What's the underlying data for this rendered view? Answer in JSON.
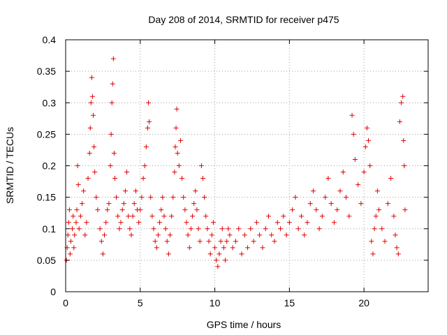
{
  "chart_data": {
    "type": "scatter",
    "title": "Day 208 of 2014, SRMTID for receiver p475",
    "xlabel": "GPS time / hours",
    "ylabel": "SRMTID / TECUs",
    "xlim": [
      0,
      24.3
    ],
    "ylim": [
      0,
      0.4
    ],
    "x_ticks": [
      0,
      5,
      10,
      15,
      20
    ],
    "x_tick_labels": [
      "0",
      "5",
      "10",
      "15",
      "20"
    ],
    "y_ticks": [
      0,
      0.05,
      0.1,
      0.15,
      0.2,
      0.25,
      0.3,
      0.35,
      0.4
    ],
    "y_tick_labels": [
      "0",
      "0.05",
      "0.1",
      "0.15",
      "0.2",
      "0.25",
      "0.3",
      "0.35",
      "0.4"
    ],
    "grid": true,
    "marker": "+",
    "color": "#e00000",
    "series": [
      {
        "name": "SRMTID",
        "points": [
          [
            0.05,
            0.05
          ],
          [
            0.1,
            0.07
          ],
          [
            0.15,
            0.09
          ],
          [
            0.2,
            0.11
          ],
          [
            0.25,
            0.13
          ],
          [
            0.3,
            0.06
          ],
          [
            0.35,
            0.08
          ],
          [
            0.45,
            0.1
          ],
          [
            0.5,
            0.12
          ],
          [
            0.55,
            0.07
          ],
          [
            0.6,
            0.09
          ],
          [
            0.7,
            0.11
          ],
          [
            0.75,
            0.13
          ],
          [
            0.8,
            0.2
          ],
          [
            0.85,
            0.17
          ],
          [
            0.9,
            0.1
          ],
          [
            1.0,
            0.12
          ],
          [
            1.1,
            0.14
          ],
          [
            1.2,
            0.16
          ],
          [
            1.3,
            0.09
          ],
          [
            1.4,
            0.11
          ],
          [
            1.5,
            0.18
          ],
          [
            1.6,
            0.22
          ],
          [
            1.65,
            0.26
          ],
          [
            1.7,
            0.3
          ],
          [
            1.75,
            0.34
          ],
          [
            1.8,
            0.31
          ],
          [
            1.85,
            0.28
          ],
          [
            1.9,
            0.23
          ],
          [
            1.95,
            0.19
          ],
          [
            2.05,
            0.15
          ],
          [
            2.15,
            0.13
          ],
          [
            2.3,
            0.1
          ],
          [
            2.4,
            0.08
          ],
          [
            2.5,
            0.06
          ],
          [
            2.6,
            0.09
          ],
          [
            2.7,
            0.11
          ],
          [
            2.8,
            0.13
          ],
          [
            2.9,
            0.14
          ],
          [
            3.0,
            0.2
          ],
          [
            3.05,
            0.25
          ],
          [
            3.1,
            0.3
          ],
          [
            3.15,
            0.33
          ],
          [
            3.2,
            0.37
          ],
          [
            3.25,
            0.22
          ],
          [
            3.3,
            0.18
          ],
          [
            3.4,
            0.15
          ],
          [
            3.5,
            0.12
          ],
          [
            3.6,
            0.1
          ],
          [
            3.7,
            0.11
          ],
          [
            3.8,
            0.13
          ],
          [
            3.9,
            0.14
          ],
          [
            4.0,
            0.16
          ],
          [
            4.1,
            0.19
          ],
          [
            4.2,
            0.12
          ],
          [
            4.3,
            0.1
          ],
          [
            4.4,
            0.09
          ],
          [
            4.5,
            0.12
          ],
          [
            4.6,
            0.14
          ],
          [
            4.7,
            0.16
          ],
          [
            4.8,
            0.13
          ],
          [
            4.9,
            0.11
          ],
          [
            5.0,
            0.13
          ],
          [
            5.1,
            0.15
          ],
          [
            5.2,
            0.18
          ],
          [
            5.3,
            0.2
          ],
          [
            5.4,
            0.23
          ],
          [
            5.5,
            0.26
          ],
          [
            5.55,
            0.3
          ],
          [
            5.6,
            0.27
          ],
          [
            5.7,
            0.15
          ],
          [
            5.8,
            0.12
          ],
          [
            5.9,
            0.1
          ],
          [
            6.0,
            0.08
          ],
          [
            6.1,
            0.07
          ],
          [
            6.2,
            0.09
          ],
          [
            6.3,
            0.11
          ],
          [
            6.4,
            0.13
          ],
          [
            6.5,
            0.15
          ],
          [
            6.6,
            0.12
          ],
          [
            6.7,
            0.1
          ],
          [
            6.8,
            0.08
          ],
          [
            6.9,
            0.06
          ],
          [
            7.0,
            0.09
          ],
          [
            7.1,
            0.12
          ],
          [
            7.2,
            0.15
          ],
          [
            7.3,
            0.19
          ],
          [
            7.35,
            0.23
          ],
          [
            7.4,
            0.26
          ],
          [
            7.45,
            0.29
          ],
          [
            7.5,
            0.22
          ],
          [
            7.6,
            0.2
          ],
          [
            7.7,
            0.24
          ],
          [
            7.8,
            0.18
          ],
          [
            7.9,
            0.15
          ],
          [
            8.0,
            0.13
          ],
          [
            8.1,
            0.11
          ],
          [
            8.2,
            0.09
          ],
          [
            8.3,
            0.07
          ],
          [
            8.4,
            0.1
          ],
          [
            8.5,
            0.12
          ],
          [
            8.6,
            0.14
          ],
          [
            8.7,
            0.16
          ],
          [
            8.8,
            0.13
          ],
          [
            8.9,
            0.1
          ],
          [
            9.0,
            0.08
          ],
          [
            9.1,
            0.2
          ],
          [
            9.2,
            0.18
          ],
          [
            9.3,
            0.15
          ],
          [
            9.4,
            0.12
          ],
          [
            9.5,
            0.1
          ],
          [
            9.6,
            0.08
          ],
          [
            9.7,
            0.06
          ],
          [
            9.8,
            0.09
          ],
          [
            9.9,
            0.11
          ],
          [
            10.0,
            0.07
          ],
          [
            10.1,
            0.05
          ],
          [
            10.2,
            0.04
          ],
          [
            10.3,
            0.06
          ],
          [
            10.4,
            0.08
          ],
          [
            10.5,
            0.1
          ],
          [
            10.6,
            0.07
          ],
          [
            10.7,
            0.05
          ],
          [
            10.8,
            0.08
          ],
          [
            10.9,
            0.1
          ],
          [
            11.0,
            0.09
          ],
          [
            11.2,
            0.07
          ],
          [
            11.4,
            0.08
          ],
          [
            11.6,
            0.1
          ],
          [
            11.8,
            0.06
          ],
          [
            12.0,
            0.09
          ],
          [
            12.2,
            0.07
          ],
          [
            12.4,
            0.1
          ],
          [
            12.6,
            0.08
          ],
          [
            12.8,
            0.11
          ],
          [
            13.0,
            0.09
          ],
          [
            13.2,
            0.07
          ],
          [
            13.4,
            0.1
          ],
          [
            13.6,
            0.12
          ],
          [
            13.8,
            0.09
          ],
          [
            14.0,
            0.08
          ],
          [
            14.2,
            0.11
          ],
          [
            14.4,
            0.1
          ],
          [
            14.6,
            0.12
          ],
          [
            14.8,
            0.09
          ],
          [
            15.0,
            0.11
          ],
          [
            15.2,
            0.13
          ],
          [
            15.4,
            0.15
          ],
          [
            15.6,
            0.1
          ],
          [
            15.8,
            0.12
          ],
          [
            16.0,
            0.09
          ],
          [
            16.2,
            0.11
          ],
          [
            16.4,
            0.14
          ],
          [
            16.6,
            0.16
          ],
          [
            16.8,
            0.13
          ],
          [
            17.0,
            0.1
          ],
          [
            17.2,
            0.12
          ],
          [
            17.4,
            0.15
          ],
          [
            17.6,
            0.18
          ],
          [
            17.8,
            0.14
          ],
          [
            18.0,
            0.11
          ],
          [
            18.2,
            0.13
          ],
          [
            18.4,
            0.16
          ],
          [
            18.6,
            0.19
          ],
          [
            18.8,
            0.15
          ],
          [
            19.0,
            0.12
          ],
          [
            19.2,
            0.28
          ],
          [
            19.3,
            0.25
          ],
          [
            19.4,
            0.21
          ],
          [
            19.6,
            0.17
          ],
          [
            19.8,
            0.14
          ],
          [
            20.0,
            0.19
          ],
          [
            20.1,
            0.23
          ],
          [
            20.2,
            0.26
          ],
          [
            20.3,
            0.24
          ],
          [
            20.4,
            0.2
          ],
          [
            20.5,
            0.08
          ],
          [
            20.6,
            0.06
          ],
          [
            20.7,
            0.1
          ],
          [
            20.8,
            0.12
          ],
          [
            20.9,
            0.16
          ],
          [
            21.0,
            0.13
          ],
          [
            21.2,
            0.1
          ],
          [
            21.4,
            0.08
          ],
          [
            21.6,
            0.14
          ],
          [
            21.8,
            0.18
          ],
          [
            22.0,
            0.12
          ],
          [
            22.1,
            0.09
          ],
          [
            22.2,
            0.07
          ],
          [
            22.3,
            0.06
          ],
          [
            22.4,
            0.27
          ],
          [
            22.5,
            0.3
          ],
          [
            22.6,
            0.31
          ],
          [
            22.65,
            0.24
          ],
          [
            22.7,
            0.2
          ],
          [
            22.75,
            0.13
          ]
        ]
      }
    ]
  }
}
